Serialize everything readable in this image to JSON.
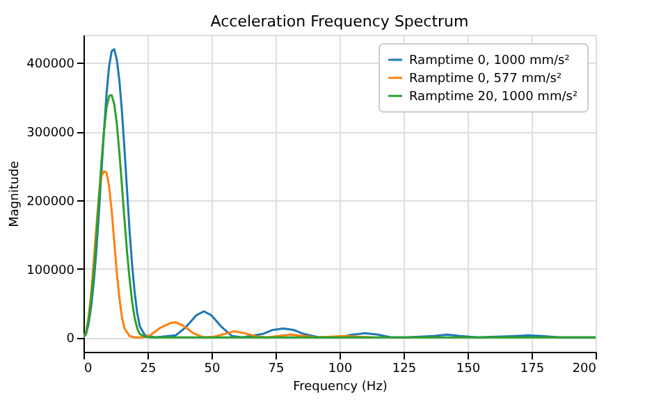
{
  "chart_data": {
    "type": "line",
    "title": "Acceleration Frequency Spectrum",
    "xlabel": "Frequency (Hz)",
    "ylabel": "Magnitude",
    "xlim": [
      0,
      200
    ],
    "ylim": [
      -21000,
      441000
    ],
    "xticks": [
      0,
      25,
      50,
      75,
      100,
      125,
      150,
      175,
      200
    ],
    "yticks": [
      0,
      100000,
      200000,
      300000,
      400000
    ],
    "grid": true,
    "legend": "top right",
    "marker": "none",
    "line_style": "solid",
    "series": [
      {
        "name": "Ramptime 0, 1000 mm/s²",
        "color": "#1f77b4",
        "x": [
          0,
          1,
          2,
          3,
          4,
          5,
          6,
          7,
          8,
          9,
          10,
          11,
          12,
          13,
          14,
          15,
          16,
          17,
          18,
          19,
          20,
          21,
          22,
          24,
          28,
          36,
          40,
          44,
          47,
          50,
          54,
          58,
          62,
          70,
          74,
          78,
          82,
          86,
          92,
          100,
          105,
          110,
          115,
          120,
          126,
          137,
          142,
          147,
          154,
          169,
          174,
          179,
          186,
          200
        ],
        "values": [
          0,
          5000,
          20000,
          45000,
          80000,
          125000,
          180000,
          240000,
          300000,
          355000,
          395000,
          417000,
          420000,
          405000,
          375000,
          330000,
          275000,
          215000,
          155000,
          105000,
          65000,
          35000,
          16000,
          3000,
          0,
          3000,
          15000,
          32000,
          38000,
          32000,
          15000,
          2000,
          0,
          5000,
          11000,
          13000,
          11000,
          5000,
          0,
          0,
          4000,
          6000,
          4000,
          0,
          0,
          2000,
          4000,
          2000,
          0,
          2000,
          3000,
          2000,
          0,
          0
        ]
      },
      {
        "name": "Ramptime 0, 577 mm/s²",
        "color": "#ff7f0e",
        "x": [
          0,
          1,
          2,
          3,
          4,
          5,
          6,
          7,
          8,
          9,
          10,
          11,
          12,
          13,
          14,
          15,
          16,
          18,
          20,
          23,
          26,
          30,
          34,
          36,
          39,
          43,
          47,
          51,
          55,
          59,
          63,
          68,
          72,
          76,
          81,
          86,
          91,
          102,
          113
        ],
        "values": [
          0,
          8000,
          30000,
          65000,
          110000,
          160000,
          205000,
          235000,
          242000,
          240000,
          220000,
          185000,
          140000,
          95000,
          58000,
          30000,
          13000,
          2000,
          0,
          0,
          3000,
          14000,
          21000,
          22000,
          17000,
          6000,
          0,
          1000,
          5000,
          9000,
          6000,
          1000,
          0,
          2000,
          4000,
          2000,
          0,
          2000,
          0
        ]
      },
      {
        "name": "Ramptime 20, 1000 mm/s²",
        "color": "#2ca02c",
        "x": [
          0,
          1,
          2,
          3,
          4,
          5,
          6,
          7,
          8,
          9,
          10,
          11,
          12,
          13,
          14,
          15,
          16,
          17,
          18,
          19,
          20,
          21,
          22,
          24,
          26,
          200
        ],
        "values": [
          0,
          6000,
          25000,
          55000,
          95000,
          145000,
          200000,
          255000,
          300000,
          335000,
          352000,
          353000,
          340000,
          312000,
          270000,
          222000,
          172000,
          125000,
          85000,
          52000,
          28000,
          13000,
          5000,
          1000,
          0,
          0
        ]
      }
    ]
  }
}
